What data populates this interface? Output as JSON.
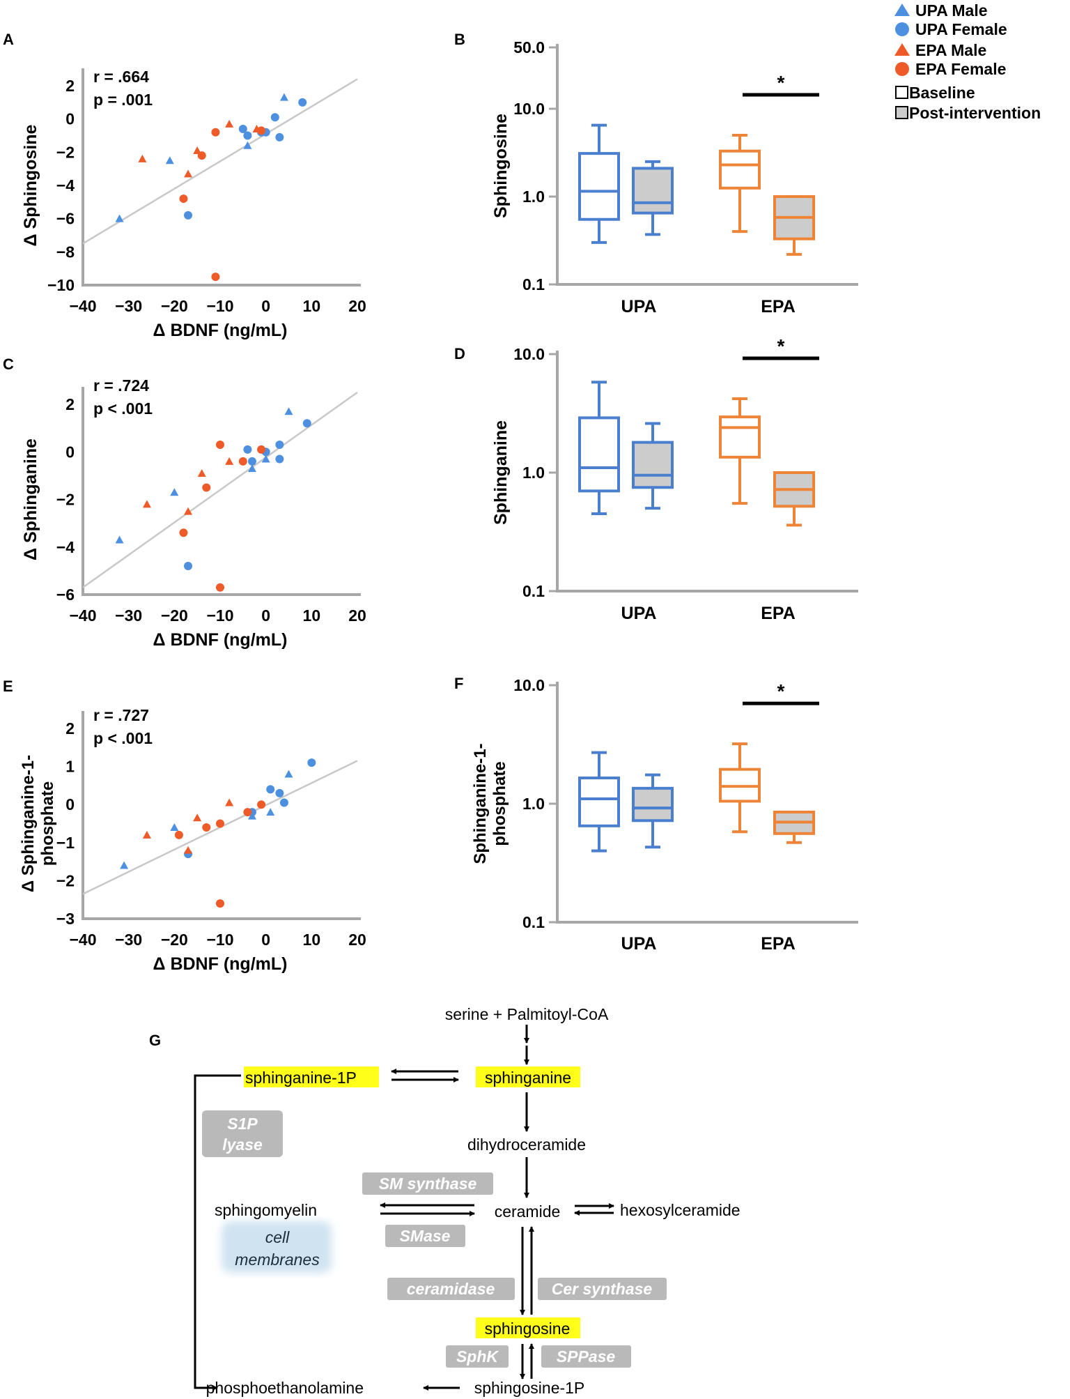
{
  "colors": {
    "upa": "#4a7fcf",
    "upa_point": "#4d90e0",
    "epa": "#ee8437",
    "epa_point": "#ee5a28",
    "axis": "#a6a6a6",
    "fit": "#c8c8c8",
    "post_fill": "#cccccc",
    "highlight": "#ffff1a",
    "enzyme_box": "#b9b9b9",
    "membrane": "#cfe3f1"
  },
  "legend": {
    "upa_male": "UPA Male",
    "upa_female": "UPA Female",
    "epa_male": "EPA Male",
    "epa_female": "EPA Female",
    "baseline": "Baseline",
    "post": "Post-intervention"
  },
  "panel_labels": [
    "A",
    "B",
    "C",
    "D",
    "E",
    "F",
    "G"
  ],
  "chart_data": [
    {
      "panel": "A",
      "type": "scatter",
      "xlabel": "Δ BDNF (ng/mL)",
      "ylabel": "Δ Sphingosine",
      "xlim": [
        -40,
        20
      ],
      "ylim": [
        -10,
        2
      ],
      "xticks": [
        "−40",
        "−30",
        "−20",
        "−10",
        "0",
        "10",
        "20"
      ],
      "yticks": [
        "2",
        "0",
        "−2",
        "−4",
        "−6",
        "−8",
        "−10"
      ],
      "stat_r": "r = .664",
      "stat_p": "p = .001",
      "fit": {
        "x": [
          -40,
          20
        ],
        "y": [
          -7.5,
          2.4
        ]
      },
      "series": [
        {
          "name": "UPA Male",
          "marker": "triangle",
          "points": [
            [
              -32,
              -6.0
            ],
            [
              -21,
              -2.5
            ],
            [
              -4,
              -1.6
            ],
            [
              4,
              1.3
            ]
          ]
        },
        {
          "name": "UPA Female",
          "marker": "circle",
          "points": [
            [
              -17,
              -5.8
            ],
            [
              -5,
              -0.6
            ],
            [
              -4,
              -1.0
            ],
            [
              -1,
              -0.8
            ],
            [
              0,
              -0.8
            ],
            [
              2,
              0.1
            ],
            [
              3,
              -1.1
            ],
            [
              8,
              1.0
            ]
          ]
        },
        {
          "name": "EPA Male",
          "marker": "triangle",
          "points": [
            [
              -27,
              -2.4
            ],
            [
              -15,
              -1.9
            ],
            [
              -17,
              -3.3
            ],
            [
              -8,
              -0.3
            ],
            [
              -2,
              -0.6
            ]
          ]
        },
        {
          "name": "EPA Female",
          "marker": "circle",
          "points": [
            [
              -18,
              -4.8
            ],
            [
              -14,
              -2.2
            ],
            [
              -11,
              -0.8
            ],
            [
              -1,
              -0.7
            ],
            [
              -11,
              -9.5
            ]
          ]
        }
      ]
    },
    {
      "panel": "B",
      "type": "box",
      "scale": "log",
      "ylabel": "Sphingosine",
      "ylim": [
        0.1,
        50
      ],
      "yticks": [
        "50.0",
        "10.0",
        "1.0",
        "0.1"
      ],
      "yticks_values": [
        50,
        10,
        1,
        0.1
      ],
      "categories": [
        "UPA",
        "EPA"
      ],
      "significance": "*",
      "boxes": [
        {
          "group": "UPA",
          "timepoint": "Baseline",
          "min": 0.3,
          "q1": 0.55,
          "median": 1.15,
          "q3": 3.1,
          "max": 6.5
        },
        {
          "group": "UPA",
          "timepoint": "Post-intervention",
          "min": 0.37,
          "q1": 0.65,
          "median": 0.85,
          "q3": 2.1,
          "max": 2.5
        },
        {
          "group": "EPA",
          "timepoint": "Baseline",
          "min": 0.4,
          "q1": 1.25,
          "median": 2.3,
          "q3": 3.3,
          "max": 5.0
        },
        {
          "group": "EPA",
          "timepoint": "Post-intervention",
          "min": 0.22,
          "q1": 0.33,
          "median": 0.58,
          "q3": 1.0,
          "max": 1.0
        }
      ]
    },
    {
      "panel": "C",
      "type": "scatter",
      "xlabel": "Δ BDNF (ng/mL)",
      "ylabel": "Δ Sphinganine",
      "xlim": [
        -40,
        20
      ],
      "ylim": [
        -6,
        2
      ],
      "xticks": [
        "−40",
        "−30",
        "−20",
        "−10",
        "0",
        "10",
        "20"
      ],
      "yticks": [
        "2",
        "0",
        "−2",
        "−4",
        "−6"
      ],
      "stat_r": "r = .724",
      "stat_p": "p < .001",
      "fit": {
        "x": [
          -40,
          20
        ],
        "y": [
          -5.7,
          2.5
        ]
      },
      "series": [
        {
          "name": "UPA Male",
          "marker": "triangle",
          "points": [
            [
              -32,
              -3.7
            ],
            [
              -20,
              -1.7
            ],
            [
              -3,
              -0.7
            ],
            [
              0,
              -0.3
            ],
            [
              5,
              1.7
            ]
          ]
        },
        {
          "name": "UPA Female",
          "marker": "circle",
          "points": [
            [
              -17,
              -4.8
            ],
            [
              -4,
              0.1
            ],
            [
              -3,
              -0.4
            ],
            [
              0,
              0.0
            ],
            [
              3,
              0.3
            ],
            [
              3,
              -0.3
            ],
            [
              9,
              1.2
            ]
          ]
        },
        {
          "name": "EPA Male",
          "marker": "triangle",
          "points": [
            [
              -26,
              -2.2
            ],
            [
              -17,
              -2.5
            ],
            [
              -14,
              -0.9
            ],
            [
              -8,
              -0.4
            ]
          ]
        },
        {
          "name": "EPA Female",
          "marker": "circle",
          "points": [
            [
              -18,
              -3.4
            ],
            [
              -13,
              -1.5
            ],
            [
              -10,
              0.3
            ],
            [
              -5,
              -0.4
            ],
            [
              -1,
              0.1
            ],
            [
              -10,
              -5.7
            ]
          ]
        }
      ]
    },
    {
      "panel": "D",
      "type": "box",
      "scale": "log",
      "ylabel": "Sphinganine",
      "ylim": [
        0.1,
        10
      ],
      "yticks": [
        "10.0",
        "1.0",
        "0.1"
      ],
      "yticks_values": [
        10,
        1,
        0.1
      ],
      "categories": [
        "UPA",
        "EPA"
      ],
      "significance": "*",
      "boxes": [
        {
          "group": "UPA",
          "timepoint": "Baseline",
          "min": 0.45,
          "q1": 0.7,
          "median": 1.1,
          "q3": 2.9,
          "max": 5.8
        },
        {
          "group": "UPA",
          "timepoint": "Post-intervention",
          "min": 0.5,
          "q1": 0.75,
          "median": 0.95,
          "q3": 1.8,
          "max": 2.6
        },
        {
          "group": "EPA",
          "timepoint": "Baseline",
          "min": 0.55,
          "q1": 1.35,
          "median": 2.4,
          "q3": 2.95,
          "max": 4.2
        },
        {
          "group": "EPA",
          "timepoint": "Post-intervention",
          "min": 0.36,
          "q1": 0.52,
          "median": 0.72,
          "q3": 1.0,
          "max": 1.0
        }
      ]
    },
    {
      "panel": "E",
      "type": "scatter",
      "xlabel": "Δ BDNF (ng/mL)",
      "ylabel": "Δ Sphinganine-1-phosphate",
      "ylabel_line1": "Δ Sphinganine-1-",
      "ylabel_line2": "phosphate",
      "xlim": [
        -40,
        20
      ],
      "ylim": [
        -3,
        2
      ],
      "xticks": [
        "−40",
        "−30",
        "−20",
        "−10",
        "0",
        "10",
        "20"
      ],
      "yticks": [
        "2",
        "1",
        "0",
        "−1",
        "−2",
        "−3"
      ],
      "stat_r": "r = .727",
      "stat_p": "p < .001",
      "fit": {
        "x": [
          -40,
          20
        ],
        "y": [
          -2.35,
          1.15
        ]
      },
      "series": [
        {
          "name": "UPA Male",
          "marker": "triangle",
          "points": [
            [
              -31,
              -1.6
            ],
            [
              -20,
              -0.6
            ],
            [
              -3,
              -0.3
            ],
            [
              1,
              -0.2
            ],
            [
              5,
              0.8
            ]
          ]
        },
        {
          "name": "UPA Female",
          "marker": "circle",
          "points": [
            [
              -17,
              -1.3
            ],
            [
              -3,
              -0.2
            ],
            [
              1,
              0.4
            ],
            [
              3,
              0.3
            ],
            [
              4,
              0.05
            ],
            [
              10,
              1.1
            ]
          ]
        },
        {
          "name": "EPA Male",
          "marker": "triangle",
          "points": [
            [
              -26,
              -0.8
            ],
            [
              -15,
              -0.35
            ],
            [
              -17,
              -1.2
            ],
            [
              -8,
              0.05
            ]
          ]
        },
        {
          "name": "EPA Female",
          "marker": "circle",
          "points": [
            [
              -19,
              -0.8
            ],
            [
              -13,
              -0.6
            ],
            [
              -10,
              -0.5
            ],
            [
              -4,
              -0.2
            ],
            [
              -1,
              0.0
            ],
            [
              -10,
              -2.6
            ]
          ]
        }
      ]
    },
    {
      "panel": "F",
      "type": "box",
      "scale": "log",
      "ylabel": "Sphinganine-1-phosphate",
      "ylabel_line1": "Sphinganine-1-",
      "ylabel_line2": "phosphate",
      "ylim": [
        0.1,
        10
      ],
      "yticks": [
        "10.0",
        "1.0",
        "0.1"
      ],
      "yticks_values": [
        10,
        1,
        0.1
      ],
      "categories": [
        "UPA",
        "EPA"
      ],
      "significance": "*",
      "boxes": [
        {
          "group": "UPA",
          "timepoint": "Baseline",
          "min": 0.4,
          "q1": 0.65,
          "median": 1.1,
          "q3": 1.65,
          "max": 2.7
        },
        {
          "group": "UPA",
          "timepoint": "Post-intervention",
          "min": 0.43,
          "q1": 0.72,
          "median": 0.92,
          "q3": 1.35,
          "max": 1.75
        },
        {
          "group": "EPA",
          "timepoint": "Baseline",
          "min": 0.58,
          "q1": 1.05,
          "median": 1.4,
          "q3": 1.95,
          "max": 3.2
        },
        {
          "group": "EPA",
          "timepoint": "Post-intervention",
          "min": 0.47,
          "q1": 0.56,
          "median": 0.7,
          "q3": 0.85,
          "max": 0.85
        }
      ]
    }
  ],
  "pathway": {
    "serine": "serine + Palmitoyl-CoA",
    "sphinganine": "sphinganine",
    "sphinganine_1p": "sphinganine-1P",
    "dihydroceramide": "dihydroceramide",
    "ceramide": "ceramide",
    "sphingomyelin": "sphingomyelin",
    "hexosylceramide": "hexosylceramide",
    "sphingosine": "sphingosine",
    "sphingosine_1p": "sphingosine-1P",
    "phosphoethanolamine": "phosphoethanolamine",
    "cell_membranes_1": "cell",
    "cell_membranes_2": "membranes",
    "s1p_lyase_1": "S1P",
    "s1p_lyase_2": "lyase",
    "sm_synthase": "SM synthase",
    "smase": "SMase",
    "ceramidase": "ceramidase",
    "cer_synthase": "Cer synthase",
    "sphk": "SphK",
    "sppase": "SPPase"
  }
}
